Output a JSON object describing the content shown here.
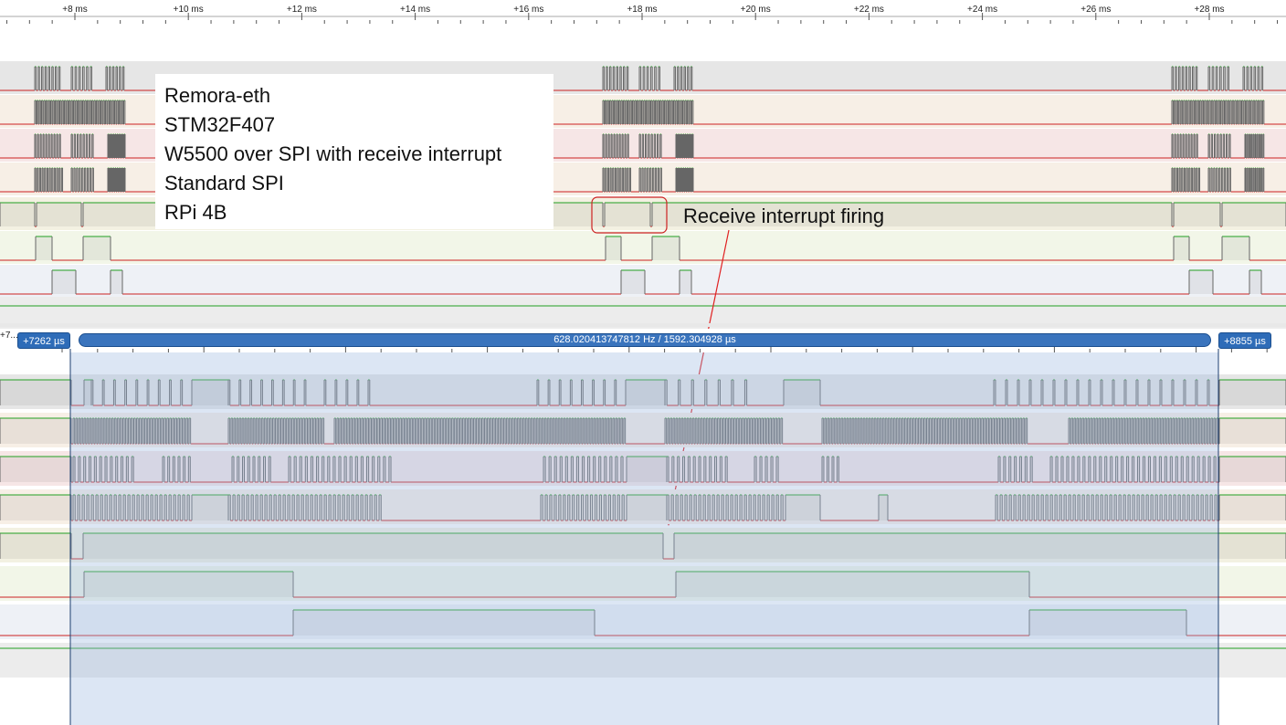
{
  "overview_ruler": {
    "ticks": [
      {
        "label": "+8 ms",
        "ms": 8
      },
      {
        "label": "+10 ms",
        "ms": 10
      },
      {
        "label": "+12 ms",
        "ms": 12
      },
      {
        "label": "+14 ms",
        "ms": 14
      },
      {
        "label": "+16 ms",
        "ms": 16
      },
      {
        "label": "+18 ms",
        "ms": 18
      },
      {
        "label": "+20 ms",
        "ms": 20
      },
      {
        "label": "+22 ms",
        "ms": 22
      },
      {
        "label": "+24 ms",
        "ms": 24
      },
      {
        "label": "+26 ms",
        "ms": 26
      },
      {
        "label": "+28 ms",
        "ms": 28
      }
    ]
  },
  "annotation": {
    "lines": [
      "Remora-eth",
      "STM32F407",
      "W5500 over SPI with receive interrupt",
      "Standard SPI",
      "RPi 4B"
    ]
  },
  "callout": {
    "label": "Receive interrupt firing"
  },
  "measurement": {
    "left_offset_label": "+7...",
    "left_cursor": "+7262 µs",
    "right_cursor": "+8855 µs",
    "readout": "628.020413747812 Hz / 1592.304928 µs"
  },
  "colors": {
    "signal_high": "#22a022",
    "signal_low": "#cc2222",
    "selection": "#9bb7e0",
    "pill": "#2e6cb8"
  },
  "channels": {
    "count": 8,
    "bands": [
      "#e6e6e6",
      "#f7efe6",
      "#f6e6e6",
      "#f7efe6",
      "#f3f1e2",
      "#f2f6e8",
      "#eef1f6",
      "#ececec"
    ]
  }
}
